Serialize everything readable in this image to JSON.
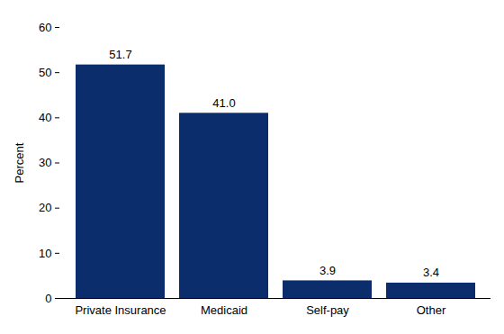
{
  "chart_data": {
    "type": "bar",
    "y_label": "Percent",
    "categories": [
      "Private Insurance",
      "Medicaid",
      "Self-pay",
      "Other"
    ],
    "values": [
      51.7,
      41.0,
      3.9,
      3.4
    ],
    "value_labels": [
      "51.7",
      "41.0",
      "3.9",
      "3.4"
    ],
    "color": "#0b2d6b",
    "ylim": [
      0,
      60
    ],
    "yticks": [
      0,
      10,
      20,
      30,
      40,
      50,
      60
    ],
    "grid": false,
    "data_labels": true
  }
}
